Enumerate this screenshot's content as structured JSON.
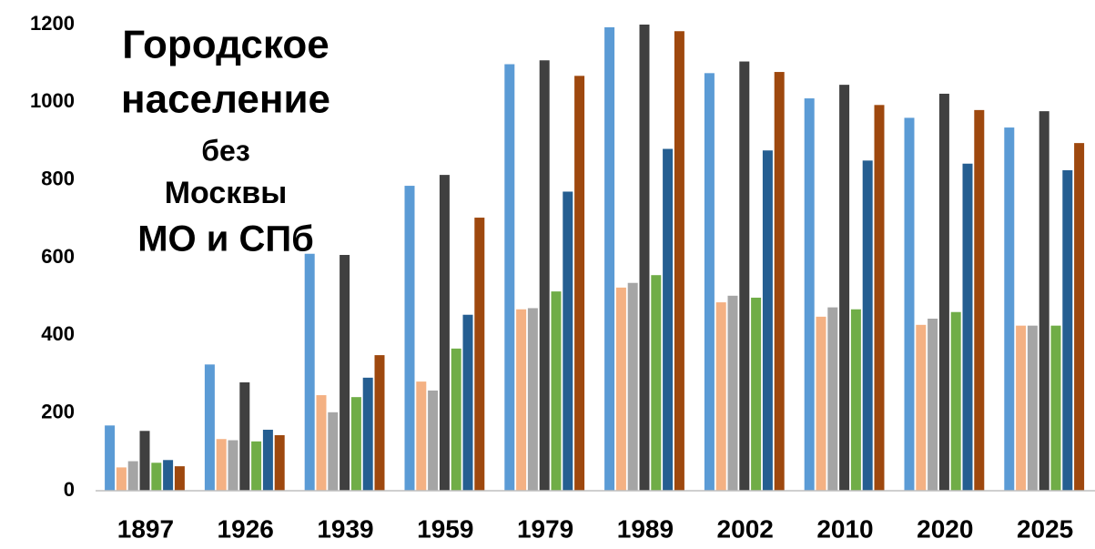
{
  "chart_data": {
    "type": "bar",
    "title": [
      "Городское",
      "население",
      "без",
      "Москвы",
      "МО и СПб"
    ],
    "categories": [
      "1897",
      "1926",
      "1939",
      "1959",
      "1979",
      "1989",
      "2002",
      "2010",
      "2020",
      "2025"
    ],
    "series": [
      {
        "color": "#5b9bd5",
        "values": [
          168,
          325,
          610,
          785,
          1098,
          1193,
          1075,
          1010,
          960,
          935
        ]
      },
      {
        "color": "#f4b183",
        "values": [
          60,
          133,
          246,
          281,
          467,
          523,
          485,
          448,
          427,
          425
        ]
      },
      {
        "color": "#a5a5a5",
        "values": [
          76,
          130,
          202,
          258,
          470,
          535,
          502,
          472,
          443,
          425
        ]
      },
      {
        "color": "#404040",
        "values": [
          154,
          279,
          607,
          813,
          1108,
          1200,
          1105,
          1045,
          1022,
          977
        ]
      },
      {
        "color": "#70ad47",
        "values": [
          72,
          127,
          241,
          366,
          513,
          555,
          497,
          467,
          460,
          425
        ]
      },
      {
        "color": "#255e91",
        "values": [
          79,
          157,
          291,
          453,
          770,
          880,
          876,
          850,
          842,
          825
        ]
      },
      {
        "color": "#9e480e",
        "values": [
          63,
          143,
          349,
          703,
          1068,
          1183,
          1078,
          993,
          980,
          895
        ]
      }
    ],
    "ylim": [
      0,
      1200
    ],
    "yticks": [
      0,
      200,
      400,
      600,
      800,
      1000,
      1200
    ],
    "grid": false
  }
}
